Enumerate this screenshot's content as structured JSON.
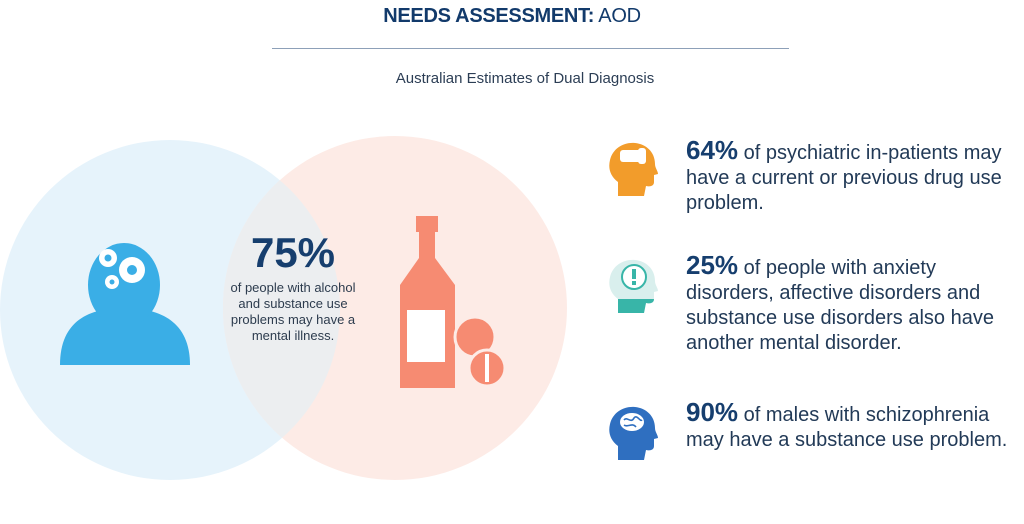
{
  "header": {
    "title_bold": "NEEDS ASSESSMENT:",
    "title_light": "AOD",
    "subtitle": "Australian Estimates of Dual Diagnosis"
  },
  "venn": {
    "left_icon": "person-gears-icon",
    "right_icon": "bottle-pills-icon",
    "left_color": "#e6f3fb",
    "right_color": "#fdebe6",
    "overlap_color": "#eceef0",
    "center_percent": "75%",
    "center_text": "of people with alcohol and substance use problems may have a mental illness."
  },
  "stats": [
    {
      "percent": "64%",
      "text": "of psychiatric in-patients may have a current or previous drug use problem.",
      "icon": "head-hand-icon",
      "color": "#f29c2b"
    },
    {
      "percent": "25%",
      "text": "of people with anxiety disorders, affective disorders and substance use disorders also have another mental disorder.",
      "icon": "head-alert-icon",
      "color": "#38b5a8"
    },
    {
      "percent": "90%",
      "text": "of males with schizophrenia may have a substance use problem.",
      "icon": "head-brain-icon",
      "color": "#2f6fc0"
    }
  ]
}
